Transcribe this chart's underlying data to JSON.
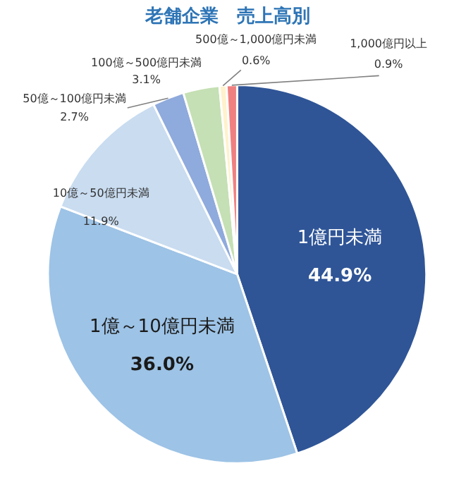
{
  "chart_data": {
    "type": "pie",
    "title": "老舗企業　売上高別",
    "categories": [
      "1億円未満",
      "1億～10億円未満",
      "10億～50億円未満",
      "50億～100億円未満",
      "100億～500億円未満",
      "500億～1,000億円未満",
      "1,000億円以上"
    ],
    "values": [
      44.9,
      36.0,
      11.9,
      2.7,
      3.1,
      0.6,
      0.9
    ],
    "value_labels": [
      "44.9%",
      "36.0%",
      "11.9%",
      "2.7%",
      "3.1%",
      "0.6%",
      "0.9%"
    ],
    "colors": [
      "#2f5597",
      "#9dc3e6",
      "#c9dcf0",
      "#8faadc",
      "#c5e0b4",
      "#fff2cc",
      "#f08080"
    ]
  }
}
